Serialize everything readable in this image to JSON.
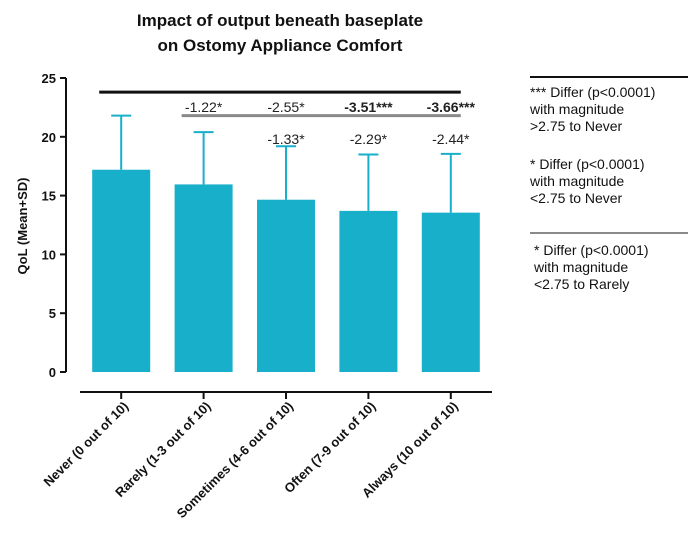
{
  "chart_data": {
    "type": "bar",
    "title_line1": "Impact of output beneath baseplate",
    "title_line2": "on Ostomy Appliance Comfort",
    "ylabel": "QoL (Mean+SD)",
    "xlabel": "",
    "ylim": [
      0,
      25
    ],
    "yticks": [
      0,
      5,
      10,
      15,
      20,
      25
    ],
    "categories": [
      "Never (0 out of 10)",
      "Rarely (1-3 out of 10)",
      "Sometimes (4-6 out of 10)",
      "Often (7-9 out of 10)",
      "Always (10 out of 10)"
    ],
    "values": [
      17.2,
      15.95,
      14.65,
      13.7,
      13.55
    ],
    "sd": [
      4.6,
      4.45,
      4.55,
      4.8,
      5.0
    ],
    "bar_color": "#17afc9",
    "comparison_rows": [
      {
        "reference": "Never (0 out of 10)",
        "line_color": "#111111",
        "annotations": [
          {
            "category_index": 1,
            "value": "-1.22",
            "stars": "*",
            "bold": false
          },
          {
            "category_index": 2,
            "value": "-2.55",
            "stars": "*",
            "bold": false
          },
          {
            "category_index": 3,
            "value": "-3.51",
            "stars": "***",
            "bold": true
          },
          {
            "category_index": 4,
            "value": "-3.66",
            "stars": "***",
            "bold": true
          }
        ]
      },
      {
        "reference": "Rarely (1-3 out of 10)",
        "line_color": "#8a8a8a",
        "annotations": [
          {
            "category_index": 2,
            "value": "-1.33",
            "stars": "*",
            "bold": false
          },
          {
            "category_index": 3,
            "value": "-2.29",
            "stars": "*",
            "bold": false
          },
          {
            "category_index": 4,
            "value": "-2.44",
            "stars": "*",
            "bold": false
          }
        ]
      }
    ]
  },
  "legend": {
    "entries": [
      {
        "lines": [
          "*** Differ (p<0.0001)",
          "with magnitude",
          ">2.75 to Never"
        ],
        "rule_color": "#111111"
      },
      {
        "lines": [
          "* Differ (p<0.0001)",
          "with magnitude",
          "<2.75 to Never"
        ],
        "rule_color": ""
      },
      {
        "lines": [
          "* Differ (p<0.0001)",
          "with magnitude",
          "<2.75 to Rarely"
        ],
        "rule_color": "#8a8a8a"
      }
    ]
  }
}
